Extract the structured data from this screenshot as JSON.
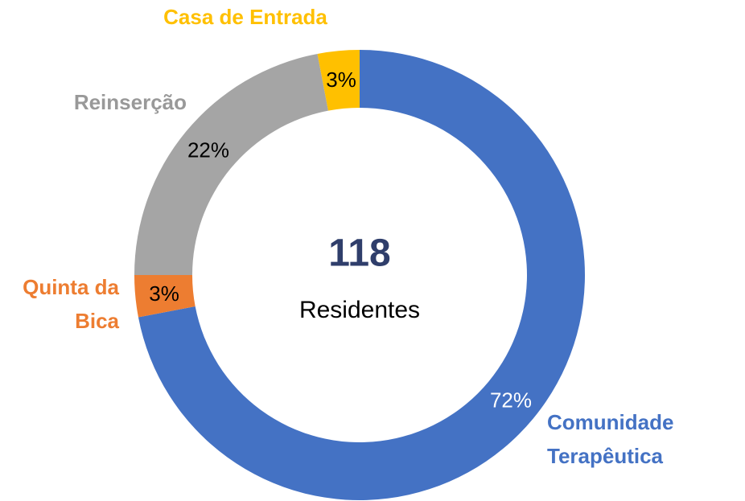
{
  "chart_data": {
    "type": "donut",
    "categories": [
      "Comunidade Terapêutica",
      "Quinta da Bica",
      "Reinserção",
      "Casa de Entrada"
    ],
    "values": [
      72,
      3,
      22,
      3
    ],
    "value_labels": [
      "72%",
      "3%",
      "22%",
      "3%"
    ],
    "colors": [
      "#4472c4",
      "#ed7d31",
      "#a5a5a5",
      "#ffc000"
    ],
    "center_value": 118,
    "center_label": "Residentes"
  }
}
